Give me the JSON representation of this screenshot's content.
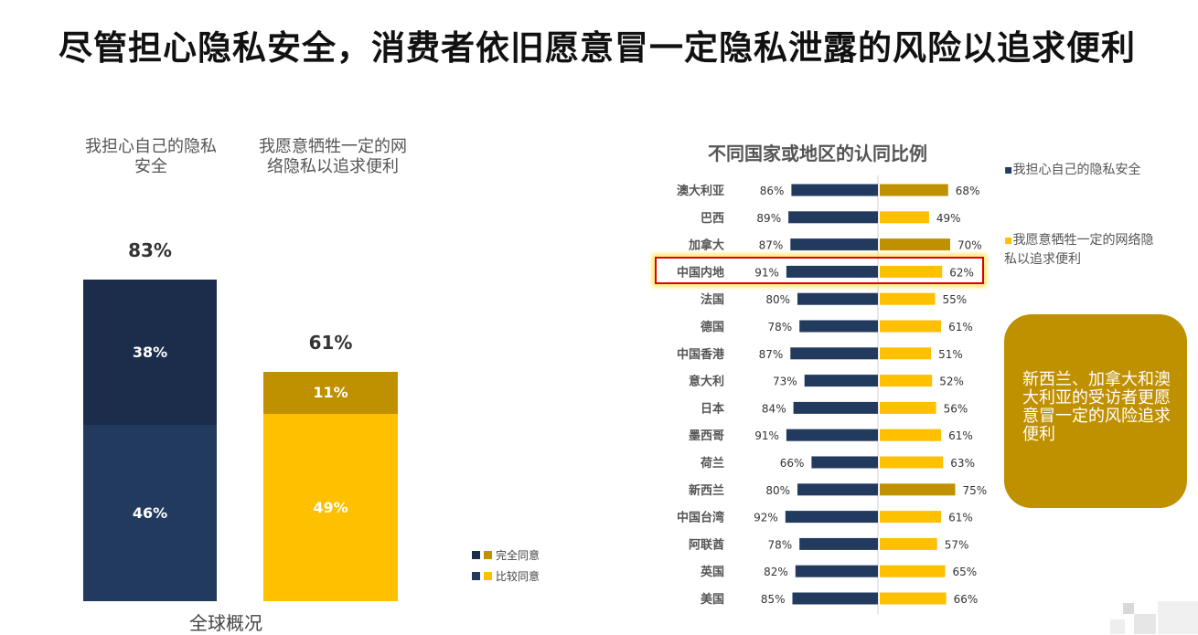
{
  "title": "尽管担心隐私安全，消费者依旧愿意冒一定隐私泄露的风险以追求便利",
  "chart_data": [
    {
      "type": "bar",
      "stacked": true,
      "categories": [
        "我担心自己的隐私安全",
        "我愿意牺牲一定的网络隐私以追求便利"
      ],
      "category_labels": [
        [
          "我担心自己的隐私",
          "安全"
        ],
        [
          "我愿意牺牲一定的网",
          "络隐私以追求便利"
        ]
      ],
      "series": [
        {
          "name": "比较同意",
          "values": [
            46,
            49
          ]
        },
        {
          "name": "完全同意",
          "values": [
            38,
            11
          ]
        }
      ],
      "totals": [
        83,
        61
      ],
      "value_suffix": "%",
      "xlabel": "全球概况",
      "legend": [
        "完全同意",
        "比较同意"
      ],
      "colors": {
        "concern_strong": "#1b2d4a",
        "concern_mild": "#223a5e",
        "convenience_strong": "#bf9000",
        "convenience_mild": "#ffc000"
      }
    },
    {
      "type": "bar",
      "orientation": "horizontal-diverging",
      "title": "不同国家或地区的认同比例",
      "categories": [
        "澳大利亚",
        "巴西",
        "加拿大",
        "中国内地",
        "法国",
        "德国",
        "中国香港",
        "意大利",
        "日本",
        "墨西哥",
        "荷兰",
        "新西兰",
        "中国台湾",
        "阿联酋",
        "英国",
        "美国"
      ],
      "series": [
        {
          "name": "我担心自己的隐私安全",
          "values": [
            86,
            89,
            87,
            91,
            80,
            78,
            87,
            73,
            84,
            91,
            66,
            80,
            92,
            78,
            82,
            85
          ]
        },
        {
          "name": "我愿意牺牲一定的网络隐私以追求便利",
          "values": [
            68,
            49,
            70,
            62,
            55,
            61,
            51,
            52,
            56,
            61,
            63,
            75,
            61,
            57,
            65,
            66
          ]
        }
      ],
      "value_suffix": "%",
      "highlighted_categories": [
        "澳大利亚",
        "加拿大",
        "新西兰"
      ],
      "boxed_category": "中国内地",
      "legend": [
        {
          "marker": "▪",
          "text": "我担心自己的隐私安全"
        },
        {
          "marker": "▪",
          "text": "我愿意牺牲一定的网络隐",
          "text2": "私以追求便利"
        }
      ],
      "colors": {
        "concern": "#223a5e",
        "convenience": "#ffc000",
        "convenience_highlight": "#bf9000"
      }
    }
  ],
  "callout": "新西兰、加拿大和澳大利亚的受访者更愿意冒一定的风险追求便利"
}
